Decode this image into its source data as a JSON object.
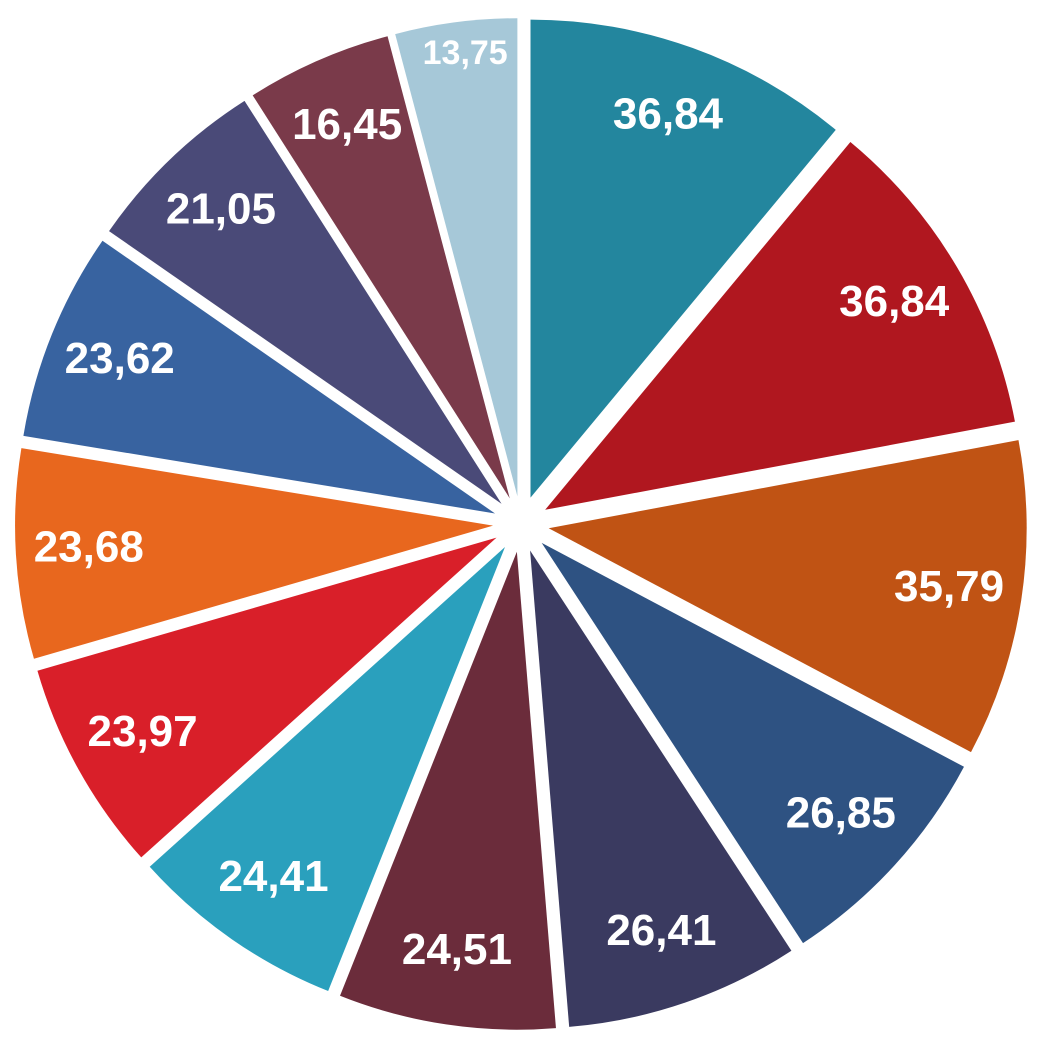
{
  "chart_data": {
    "type": "pie",
    "values": [
      36.84,
      36.84,
      35.79,
      26.85,
      26.41,
      24.51,
      24.41,
      23.97,
      23.68,
      23.62,
      21.05,
      16.45,
      13.75
    ],
    "value_labels": [
      "36,84",
      "36,84",
      "35,79",
      "26,85",
      "26,41",
      "24,51",
      "24,41",
      "23,97",
      "23,68",
      "23,62",
      "21,05",
      "16,45",
      "13,75"
    ],
    "colors": [
      "#23869e",
      "#b0171f",
      "#c05314",
      "#2e5282",
      "#3a3a60",
      "#6b2c3b",
      "#2aa0bd",
      "#d91f29",
      "#e8671e",
      "#3863a0",
      "#4a4a78",
      "#7a3a4a",
      "#a6c8d8"
    ]
  }
}
